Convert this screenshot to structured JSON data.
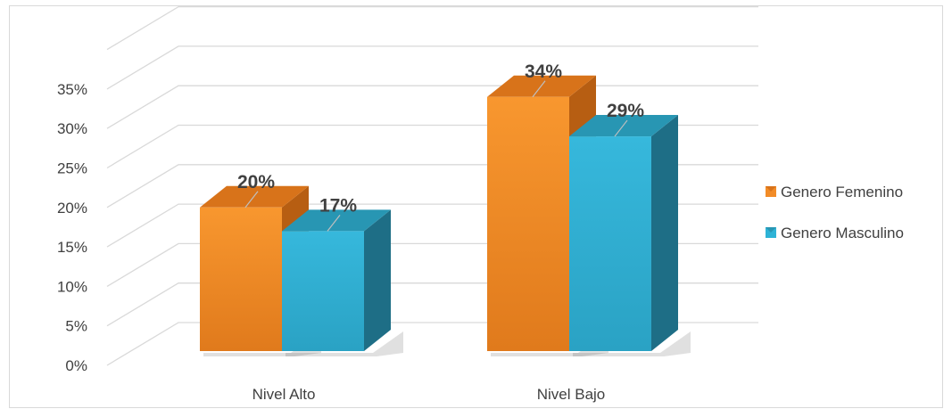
{
  "chart_data": {
    "type": "bar",
    "style": "3d-clustered-column",
    "categories": [
      "Nivel Alto",
      "Nivel Bajo"
    ],
    "series": [
      {
        "name": "Genero Femenino",
        "values": [
          20,
          34
        ],
        "labels": [
          "20%",
          "34%"
        ],
        "color": "#F28C28",
        "side_color": "#B75E12",
        "top_color": "#D8731A"
      },
      {
        "name": "Genero Masculino",
        "values": [
          17,
          29
        ],
        "labels": [
          "17%",
          "29%"
        ],
        "color": "#2EB3D6",
        "side_color": "#1E6E86",
        "top_color": "#2896B3"
      }
    ],
    "yticks": [
      "0%",
      "5%",
      "10%",
      "15%",
      "20%",
      "25%",
      "30%",
      "35%"
    ],
    "ylim": [
      0,
      35
    ],
    "title": "",
    "xlabel": "",
    "ylabel": "",
    "grid": true,
    "legend_position": "right"
  }
}
